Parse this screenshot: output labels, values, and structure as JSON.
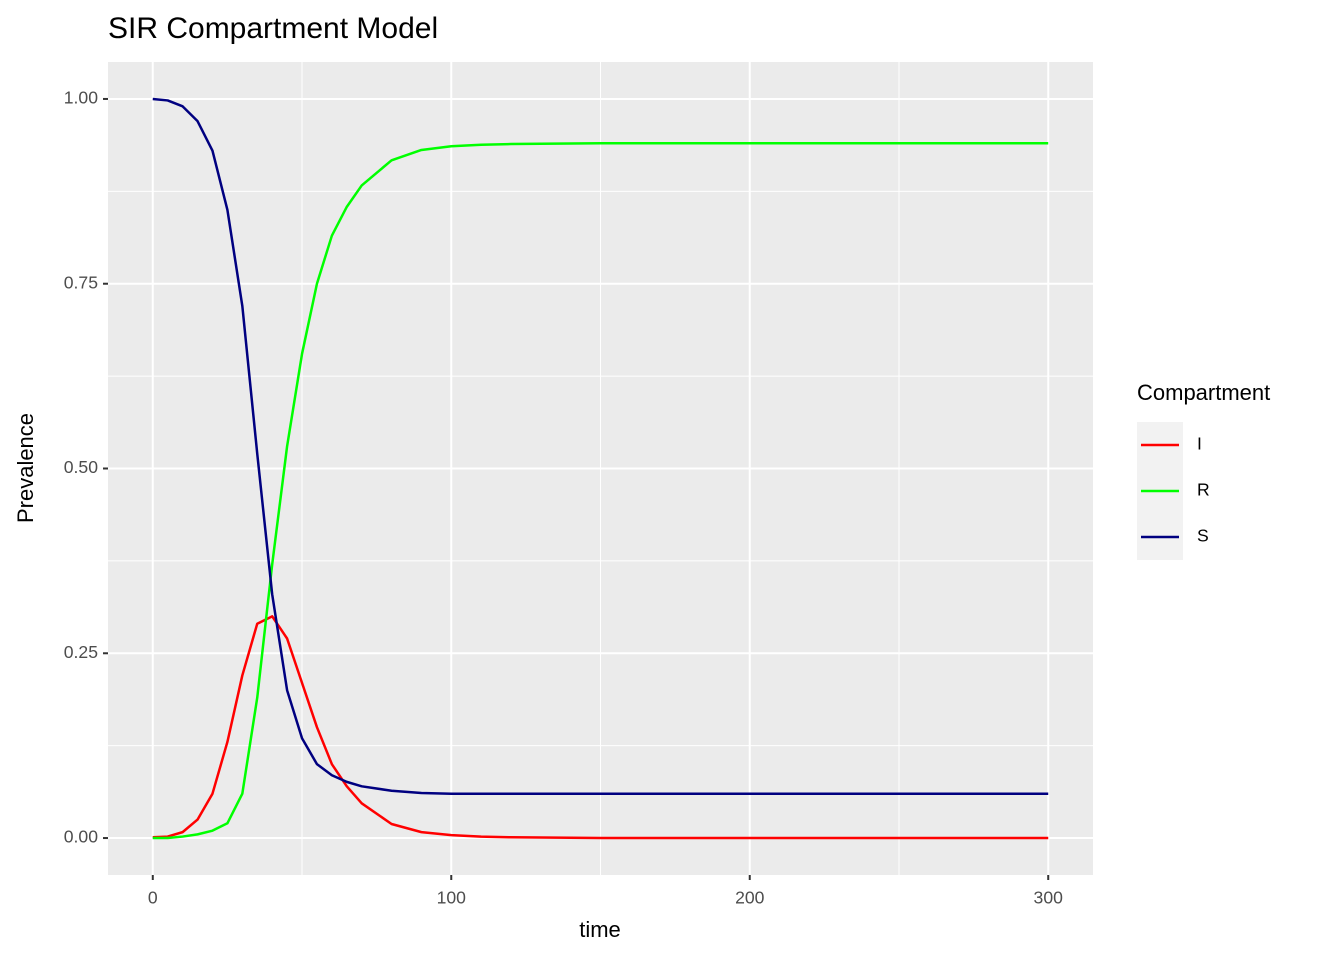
{
  "chart_data": {
    "type": "line",
    "title": "SIR Compartment Model",
    "x_label": "time",
    "y_label": "Prevalence",
    "x": [
      0,
      5,
      10,
      15,
      20,
      25,
      30,
      35,
      40,
      45,
      50,
      55,
      60,
      65,
      70,
      80,
      90,
      100,
      110,
      120,
      150,
      200,
      250,
      300
    ],
    "series": [
      {
        "name": "I",
        "color": "#ff0000",
        "values": [
          0.001,
          0.002,
          0.008,
          0.025,
          0.06,
          0.13,
          0.22,
          0.29,
          0.3,
          0.27,
          0.21,
          0.15,
          0.1,
          0.07,
          0.047,
          0.019,
          0.008,
          0.004,
          0.002,
          0.001,
          0,
          0,
          0,
          0
        ]
      },
      {
        "name": "R",
        "color": "#00ff00",
        "values": [
          0,
          0,
          0.002,
          0.005,
          0.01,
          0.02,
          0.06,
          0.19,
          0.37,
          0.53,
          0.655,
          0.75,
          0.815,
          0.854,
          0.883,
          0.917,
          0.931,
          0.936,
          0.938,
          0.939,
          0.94,
          0.94,
          0.94,
          0.94
        ]
      },
      {
        "name": "S",
        "color": "#000080",
        "values": [
          1.0,
          0.998,
          0.99,
          0.97,
          0.93,
          0.85,
          0.72,
          0.52,
          0.33,
          0.2,
          0.135,
          0.1,
          0.085,
          0.076,
          0.07,
          0.064,
          0.061,
          0.06,
          0.06,
          0.06,
          0.06,
          0.06,
          0.06,
          0.06
        ]
      }
    ],
    "legend_title": "Compartment",
    "legend_position": "right",
    "xlim": [
      -15,
      315
    ],
    "xticks": [
      0,
      100,
      200,
      300
    ],
    "x_minor_breaks": [
      50,
      150,
      250
    ],
    "ylim": [
      -0.05,
      1.05
    ],
    "yticks": [
      {
        "value": 0,
        "label": "0.00"
      },
      0.25,
      {
        "value": 0.5,
        "label": "0.50"
      },
      0.75,
      {
        "value": 1,
        "label": "1.00"
      }
    ],
    "y_minor_breaks": [
      0.125,
      0.375,
      0.625,
      0.875
    ],
    "grid": true
  }
}
